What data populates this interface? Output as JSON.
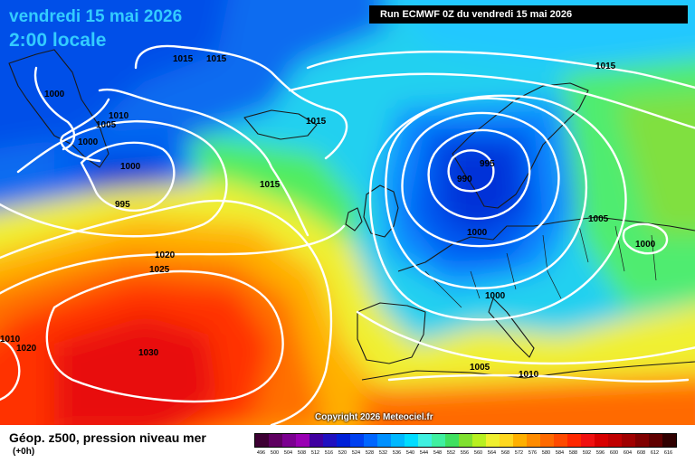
{
  "header": {
    "date": "vendredi 15 mai 2026",
    "time": "2:00 locale",
    "run": "Run ECMWF 0Z du vendredi 15 mai 2026"
  },
  "copyright": "Copyright 2026 Meteociel.fr",
  "footer": {
    "title": "Géop. z500, pression niveau mer",
    "step": "(+0h)"
  },
  "legend": {
    "values": [
      "496",
      "500",
      "504",
      "508",
      "512",
      "516",
      "520",
      "524",
      "528",
      "532",
      "536",
      "540",
      "544",
      "548",
      "552",
      "556",
      "560",
      "564",
      "568",
      "572",
      "576",
      "580",
      "584",
      "588",
      "592",
      "596",
      "600",
      "604",
      "608",
      "612",
      "616"
    ],
    "colors": [
      "#3d0033",
      "#5e0060",
      "#7b0090",
      "#9900b3",
      "#4000a0",
      "#2010c0",
      "#0020d8",
      "#0040f0",
      "#0066ff",
      "#0090ff",
      "#00b8ff",
      "#00dcff",
      "#40f0e0",
      "#40f0a0",
      "#40e060",
      "#80e030",
      "#b8f020",
      "#f0f030",
      "#ffd820",
      "#ffb000",
      "#ff8c00",
      "#ff6a00",
      "#ff4a00",
      "#ff2800",
      "#f01010",
      "#d80000",
      "#c00000",
      "#a00000",
      "#800000",
      "#600000",
      "#300000"
    ]
  },
  "isobar_labels": [
    {
      "text": "1015"
    },
    {
      "text": "1015"
    },
    {
      "text": "1000"
    },
    {
      "text": "1005"
    },
    {
      "text": "1010"
    },
    {
      "text": "1000"
    },
    {
      "text": "1000"
    },
    {
      "text": "995"
    },
    {
      "text": "1015"
    },
    {
      "text": "1015"
    },
    {
      "text": "1020"
    },
    {
      "text": "1025"
    },
    {
      "text": "1030"
    },
    {
      "text": "1010"
    },
    {
      "text": "1020"
    },
    {
      "text": "1015"
    },
    {
      "text": "995"
    },
    {
      "text": "990"
    },
    {
      "text": "1000"
    },
    {
      "text": "1005"
    },
    {
      "text": "1000"
    },
    {
      "text": "1000"
    },
    {
      "text": "1005"
    },
    {
      "text": "1010"
    }
  ]
}
